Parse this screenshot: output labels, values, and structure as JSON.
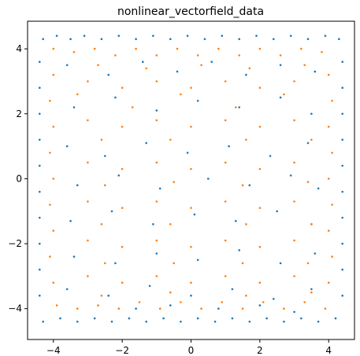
{
  "chart_data": {
    "type": "scatter",
    "title": "nonlinear_vectorfield_data",
    "xlabel": "",
    "ylabel": "",
    "xlim": [
      -4.75,
      4.75
    ],
    "ylim": [
      -4.95,
      4.85
    ],
    "xticks": [
      -4,
      -2,
      0,
      2,
      4
    ],
    "yticks": [
      -4,
      -2,
      0,
      2,
      4
    ],
    "xtick_labels": [
      "−4",
      "−2",
      "0",
      "2",
      "4"
    ],
    "ytick_labels": [
      "−4",
      "−2",
      "0",
      "2",
      "4"
    ],
    "grid": false,
    "legend": "none",
    "series": [
      {
        "color": "#1f77b4",
        "points": [
          [
            -4.3,
            4.3
          ],
          [
            -3.9,
            4.4
          ],
          [
            -3.5,
            4.3
          ],
          [
            -3.1,
            4.4
          ],
          [
            -2.6,
            4.3
          ],
          [
            -2.1,
            4.4
          ],
          [
            -1.6,
            4.3
          ],
          [
            -1.1,
            4.4
          ],
          [
            -0.6,
            4.3
          ],
          [
            -0.1,
            4.4
          ],
          [
            0.4,
            4.3
          ],
          [
            0.9,
            4.4
          ],
          [
            1.4,
            4.3
          ],
          [
            1.9,
            4.4
          ],
          [
            2.4,
            4.3
          ],
          [
            2.9,
            4.4
          ],
          [
            3.4,
            4.3
          ],
          [
            3.9,
            4.4
          ],
          [
            4.3,
            4.3
          ],
          [
            -4.4,
            3.6
          ],
          [
            -4.4,
            2.8
          ],
          [
            -4.4,
            2.0
          ],
          [
            -4.4,
            1.2
          ],
          [
            -4.4,
            0.4
          ],
          [
            -4.4,
            -0.4
          ],
          [
            -4.4,
            -1.2
          ],
          [
            -4.4,
            -2.0
          ],
          [
            -4.4,
            -2.8
          ],
          [
            -4.4,
            -3.6
          ],
          [
            4.4,
            3.6
          ],
          [
            4.4,
            2.8
          ],
          [
            4.4,
            2.0
          ],
          [
            4.4,
            1.2
          ],
          [
            4.4,
            0.4
          ],
          [
            4.4,
            -0.4
          ],
          [
            4.4,
            -1.2
          ],
          [
            4.4,
            -2.0
          ],
          [
            4.4,
            -2.8
          ],
          [
            4.4,
            -3.6
          ],
          [
            -4.3,
            -4.4
          ],
          [
            -3.8,
            -4.3
          ],
          [
            -3.3,
            -4.4
          ],
          [
            -2.8,
            -4.3
          ],
          [
            -2.3,
            -4.4
          ],
          [
            -1.8,
            -4.3
          ],
          [
            -1.3,
            -4.4
          ],
          [
            -0.8,
            -4.3
          ],
          [
            -0.3,
            -4.4
          ],
          [
            0.2,
            -4.3
          ],
          [
            0.7,
            -4.4
          ],
          [
            1.2,
            -4.3
          ],
          [
            1.7,
            -4.4
          ],
          [
            2.2,
            -4.3
          ],
          [
            2.7,
            -4.4
          ],
          [
            3.2,
            -4.3
          ],
          [
            3.7,
            -4.4
          ],
          [
            4.2,
            -4.3
          ],
          [
            -3.6,
            3.5
          ],
          [
            -2.4,
            3.2
          ],
          [
            -1.4,
            3.6
          ],
          [
            -0.4,
            3.3
          ],
          [
            0.6,
            3.6
          ],
          [
            1.6,
            3.2
          ],
          [
            2.6,
            3.5
          ],
          [
            3.6,
            3.3
          ],
          [
            -3.4,
            2.2
          ],
          [
            -2.2,
            2.5
          ],
          [
            -1.0,
            2.1
          ],
          [
            0.2,
            2.4
          ],
          [
            1.4,
            2.2
          ],
          [
            2.6,
            2.5
          ],
          [
            3.5,
            2.0
          ],
          [
            -3.6,
            1.0
          ],
          [
            -2.5,
            0.7
          ],
          [
            -1.3,
            1.1
          ],
          [
            -0.1,
            0.8
          ],
          [
            1.1,
            1.0
          ],
          [
            2.3,
            0.7
          ],
          [
            3.4,
            1.1
          ],
          [
            -3.3,
            -0.2
          ],
          [
            -2.1,
            0.1
          ],
          [
            -0.9,
            -0.3
          ],
          [
            0.5,
            0.0
          ],
          [
            1.7,
            -0.2
          ],
          [
            2.9,
            0.1
          ],
          [
            3.7,
            -0.3
          ],
          [
            -3.5,
            -1.3
          ],
          [
            -2.3,
            -1.0
          ],
          [
            -1.1,
            -1.4
          ],
          [
            0.1,
            -1.1
          ],
          [
            1.3,
            -1.3
          ],
          [
            2.5,
            -1.0
          ],
          [
            3.5,
            -1.4
          ],
          [
            -3.4,
            -2.4
          ],
          [
            -2.2,
            -2.6
          ],
          [
            -1.0,
            -2.3
          ],
          [
            0.2,
            -2.5
          ],
          [
            1.4,
            -2.2
          ],
          [
            2.6,
            -2.6
          ],
          [
            3.6,
            -2.3
          ],
          [
            -3.6,
            -3.4
          ],
          [
            -2.4,
            -3.6
          ],
          [
            -1.2,
            -3.3
          ],
          [
            0.0,
            -3.6
          ],
          [
            1.2,
            -3.4
          ],
          [
            2.4,
            -3.7
          ],
          [
            3.5,
            -3.4
          ],
          [
            -1.6,
            -4.0
          ],
          [
            -0.6,
            -3.9
          ],
          [
            0.8,
            -4.0
          ],
          [
            2.0,
            -3.9
          ],
          [
            3.0,
            -4.1
          ]
        ]
      },
      {
        "color": "#ff7f0e",
        "points": [
          [
            -4.0,
            4.0
          ],
          [
            -3.4,
            3.9
          ],
          [
            -2.8,
            4.0
          ],
          [
            -2.2,
            3.8
          ],
          [
            -1.6,
            4.0
          ],
          [
            -1.0,
            3.8
          ],
          [
            -0.4,
            4.0
          ],
          [
            0.2,
            3.8
          ],
          [
            0.8,
            4.0
          ],
          [
            1.4,
            3.8
          ],
          [
            2.0,
            4.0
          ],
          [
            2.6,
            3.8
          ],
          [
            3.2,
            4.0
          ],
          [
            3.8,
            3.9
          ],
          [
            -4.0,
            3.2
          ],
          [
            -4.1,
            2.4
          ],
          [
            -4.0,
            1.6
          ],
          [
            -4.1,
            0.8
          ],
          [
            -4.0,
            0.0
          ],
          [
            -4.1,
            -0.8
          ],
          [
            -4.0,
            -1.6
          ],
          [
            -4.1,
            -2.4
          ],
          [
            -4.0,
            -3.2
          ],
          [
            4.0,
            3.2
          ],
          [
            4.1,
            2.4
          ],
          [
            4.0,
            1.6
          ],
          [
            4.1,
            0.8
          ],
          [
            4.0,
            0.0
          ],
          [
            4.1,
            -0.8
          ],
          [
            4.0,
            -1.6
          ],
          [
            4.1,
            -2.4
          ],
          [
            4.0,
            -3.2
          ],
          [
            -3.9,
            -3.9
          ],
          [
            -3.3,
            -4.0
          ],
          [
            -2.7,
            -3.9
          ],
          [
            -2.1,
            -4.0
          ],
          [
            -1.5,
            -3.8
          ],
          [
            -0.9,
            -4.0
          ],
          [
            -0.3,
            -3.8
          ],
          [
            0.3,
            -4.0
          ],
          [
            0.9,
            -3.8
          ],
          [
            1.5,
            -4.0
          ],
          [
            2.1,
            -3.8
          ],
          [
            2.7,
            -4.0
          ],
          [
            3.3,
            -3.8
          ],
          [
            3.9,
            -4.0
          ],
          [
            -3.0,
            3.0
          ],
          [
            -2.0,
            2.8
          ],
          [
            -1.0,
            3.0
          ],
          [
            0.0,
            2.8
          ],
          [
            1.0,
            3.0
          ],
          [
            2.0,
            2.8
          ],
          [
            3.0,
            3.0
          ],
          [
            -3.0,
            1.8
          ],
          [
            -2.0,
            1.6
          ],
          [
            -1.0,
            1.8
          ],
          [
            0.0,
            1.6
          ],
          [
            1.0,
            1.8
          ],
          [
            2.0,
            1.6
          ],
          [
            3.0,
            1.8
          ],
          [
            -3.0,
            0.5
          ],
          [
            -2.0,
            0.3
          ],
          [
            -1.0,
            0.5
          ],
          [
            0.0,
            0.3
          ],
          [
            1.0,
            0.5
          ],
          [
            2.0,
            0.3
          ],
          [
            3.0,
            0.5
          ],
          [
            -3.0,
            -0.7
          ],
          [
            -2.0,
            -0.9
          ],
          [
            -1.0,
            -0.7
          ],
          [
            0.0,
            -0.9
          ],
          [
            1.0,
            -0.7
          ],
          [
            2.0,
            -0.9
          ],
          [
            3.0,
            -0.7
          ],
          [
            -3.0,
            -1.9
          ],
          [
            -2.0,
            -2.1
          ],
          [
            -1.0,
            -1.9
          ],
          [
            0.0,
            -2.1
          ],
          [
            1.0,
            -1.9
          ],
          [
            2.0,
            -2.1
          ],
          [
            3.0,
            -1.9
          ],
          [
            -3.0,
            -3.0
          ],
          [
            -2.0,
            -3.2
          ],
          [
            -1.0,
            -3.0
          ],
          [
            0.0,
            -3.2
          ],
          [
            1.0,
            -3.0
          ],
          [
            2.0,
            -3.2
          ],
          [
            3.0,
            -3.0
          ],
          [
            -2.7,
            3.5
          ],
          [
            -1.3,
            3.4
          ],
          [
            0.3,
            3.5
          ],
          [
            1.7,
            3.4
          ],
          [
            3.3,
            3.5
          ],
          [
            -3.3,
            2.6
          ],
          [
            -1.7,
            2.2
          ],
          [
            -0.3,
            2.6
          ],
          [
            1.3,
            2.2
          ],
          [
            2.7,
            2.6
          ],
          [
            -2.6,
            1.2
          ],
          [
            -0.6,
            1.2
          ],
          [
            1.6,
            1.2
          ],
          [
            3.5,
            1.2
          ],
          [
            -2.5,
            -0.2
          ],
          [
            -0.5,
            -0.1
          ],
          [
            1.5,
            -0.2
          ],
          [
            3.4,
            -0.1
          ],
          [
            -2.6,
            -1.4
          ],
          [
            -0.6,
            -1.4
          ],
          [
            1.6,
            -1.4
          ],
          [
            3.5,
            -1.4
          ],
          [
            -2.5,
            -2.6
          ],
          [
            -0.5,
            -2.6
          ],
          [
            1.5,
            -2.6
          ],
          [
            3.4,
            -2.6
          ],
          [
            -2.6,
            -3.6
          ],
          [
            -0.6,
            -3.5
          ],
          [
            1.6,
            -3.6
          ],
          [
            3.5,
            -3.5
          ]
        ]
      }
    ]
  }
}
